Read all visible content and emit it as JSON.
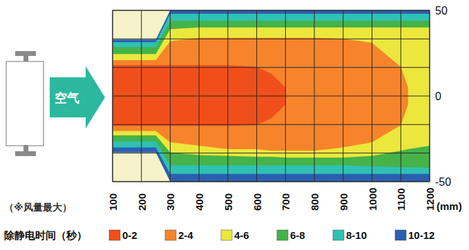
{
  "chart_data": {
    "type": "band_map",
    "annotation": "空气",
    "note": "（※风量最大）",
    "xlabel": "(mm)",
    "legend_title": "除静电时间（秒）",
    "legend": "bottom",
    "grid": true,
    "x": [
      100,
      200,
      250,
      300,
      400,
      500,
      600,
      650,
      700,
      750,
      800,
      900,
      1000,
      1100,
      1125,
      1200
    ],
    "xlim": [
      100,
      1200
    ],
    "xticks": [
      100,
      200,
      300,
      400,
      500,
      600,
      700,
      800,
      900,
      1000,
      1100,
      1200
    ],
    "ylim": [
      -50,
      50
    ],
    "yticks": [
      50,
      0,
      -50
    ],
    "series": [
      {
        "name": "0-2",
        "color": "#f04f1b",
        "upper": [
          18,
          18,
          18,
          18,
          18,
          18,
          17,
          13,
          5,
          null,
          null,
          null,
          null,
          null,
          null,
          null
        ],
        "lower": [
          -17.5,
          -17.5,
          -17.5,
          -17.5,
          -17.5,
          -17.5,
          -17,
          -13,
          -5,
          null,
          null,
          null,
          null,
          null,
          null,
          null
        ]
      },
      {
        "name": "2-4",
        "color": "#f7842a",
        "upper": [
          21,
          21,
          21,
          32,
          34,
          34,
          34,
          34,
          34,
          34,
          34,
          33.5,
          31,
          17,
          5,
          null
        ],
        "lower": [
          -20.5,
          -20.5,
          -20.5,
          -27,
          -29,
          -31,
          -31,
          -32,
          -32,
          -32,
          -32,
          -30,
          -27,
          -17,
          -5,
          null
        ]
      },
      {
        "name": "4-6",
        "color": "#ece73c",
        "upper": [
          24.5,
          24.5,
          24.5,
          39,
          40,
          40,
          40,
          40,
          40,
          40,
          40,
          40,
          40,
          40,
          40,
          40
        ],
        "lower": [
          -23,
          -23,
          -23,
          -33,
          -34.5,
          -35,
          -35.5,
          -35.5,
          -36,
          -36,
          -36,
          -36,
          -35,
          -32,
          -31,
          -29
        ]
      },
      {
        "name": "6-8",
        "color": "#45b34a",
        "upper": [
          28.5,
          28.5,
          28.5,
          44,
          44,
          44,
          44,
          44,
          44,
          44,
          44,
          44,
          44,
          44,
          44,
          44
        ],
        "lower": [
          -26.5,
          -26.5,
          -26.5,
          -40.5,
          -40.5,
          -40.5,
          -40.5,
          -40.5,
          -40.5,
          -40.5,
          -40.5,
          -40.5,
          -41,
          -41.5,
          -41.5,
          -42
        ]
      },
      {
        "name": "8-10",
        "color": "#2fc1b2",
        "upper": [
          31.5,
          31.5,
          31.5,
          48,
          48,
          48,
          48,
          48,
          48,
          48,
          48,
          48,
          48,
          48,
          48,
          48
        ],
        "lower": [
          -30,
          -30,
          -30,
          -45.5,
          -45.5,
          -45.5,
          -45.5,
          -45.5,
          -45.5,
          -45.5,
          -45.5,
          -45.5,
          -45.5,
          -45.5,
          -45.5,
          -45.5
        ]
      },
      {
        "name": "10-12",
        "color": "#2b60b0",
        "upper": [
          33,
          33,
          33,
          50,
          50,
          50,
          50,
          50,
          50,
          50,
          50,
          50,
          50,
          50,
          50,
          50
        ],
        "lower": [
          -33,
          -33,
          -33,
          -50,
          -50,
          -50,
          -50,
          -50,
          -50,
          -50,
          -50,
          -50,
          -50,
          -50,
          -50,
          -50
        ]
      }
    ]
  }
}
